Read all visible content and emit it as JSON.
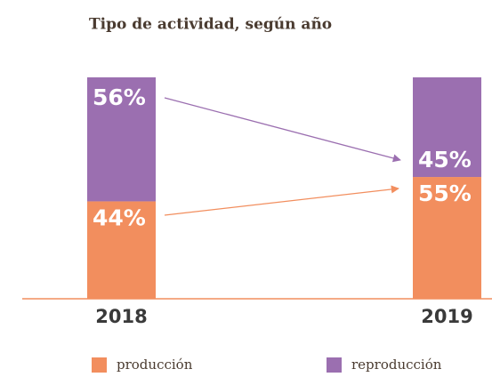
{
  "chart_data": {
    "type": "stacked_bar",
    "title": "Tipo de actividad, según año",
    "categories": [
      "2018",
      "2019"
    ],
    "series": [
      {
        "name": "producción",
        "color": "#f28e5e",
        "values": [
          44,
          55
        ],
        "value_labels": [
          "44%",
          "55%"
        ]
      },
      {
        "name": "reproducción",
        "color": "#9b6fb0",
        "values": [
          56,
          45
        ],
        "value_labels": [
          "56%",
          "45%"
        ]
      }
    ]
  }
}
